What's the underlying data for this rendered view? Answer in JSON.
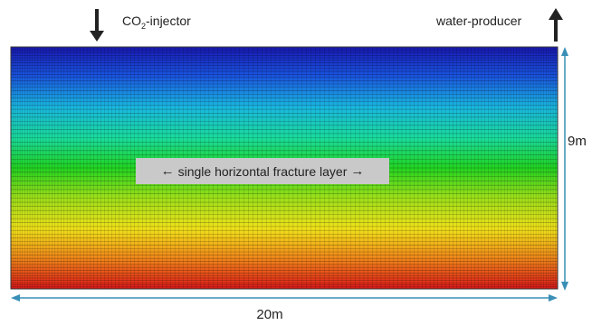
{
  "injector": {
    "label_main": "CO",
    "label_sub": "2",
    "label_rest": "-injector",
    "icon": "down-arrow-icon"
  },
  "producer": {
    "label": "water-producer",
    "icon": "up-arrow-icon"
  },
  "fracture": {
    "label": "single horizontal fracture layer",
    "left_arrow": "←",
    "right_arrow": "→"
  },
  "dimensions": {
    "width_label": "20m",
    "height_label": "9m"
  },
  "colors": {
    "gradient_top": "#1414b4",
    "gradient_mid": "#14dc14",
    "gradient_bottom": "#dc1414",
    "dimension_line": "#3a8fb7",
    "arrow": "#222222"
  }
}
